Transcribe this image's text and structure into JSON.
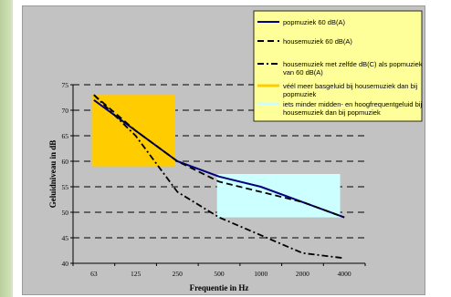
{
  "chart_data": {
    "type": "line",
    "xlabel": "Frequentie in Hz",
    "ylabel": "Geluidniveau in dB",
    "categories": [
      "63",
      "125",
      "250",
      "500",
      "1000",
      "2000",
      "4000"
    ],
    "yticks": [
      40,
      45,
      50,
      55,
      60,
      65,
      70,
      75
    ],
    "ylim": [
      40,
      75
    ],
    "grid": "horizontal-dashed",
    "legend_position": "top-right",
    "series": [
      {
        "name": "popmuziek 60 dB(A)",
        "style": "solid",
        "color": "#000080",
        "x": [
          "63",
          "125",
          "250",
          "500",
          "1000",
          "2000",
          "4000"
        ],
        "values": [
          72,
          66,
          60,
          57,
          55,
          52,
          49
        ]
      },
      {
        "name": "housemuziek 60 dB(A)",
        "style": "dashed",
        "color": "#000000",
        "x": [
          "63",
          "125",
          "250",
          "500",
          "1000",
          "2000",
          "4000"
        ],
        "values": [
          73,
          66,
          60,
          56,
          54,
          52,
          49
        ]
      },
      {
        "name": "housemuziek met zelfde dB(C) als popmuziek van 60 dB(A)",
        "style": "dashdot",
        "color": "#000000",
        "x": [
          "63",
          "125",
          "250",
          "500",
          "1000",
          "2000",
          "4000"
        ],
        "values": [
          73,
          65,
          54,
          49,
          45.5,
          42,
          41
        ]
      }
    ],
    "regions": [
      {
        "name": "véél meer basgeluid bij housemuziek dan bij popmuziek",
        "color": "#ffcc00",
        "x_range": [
          "63",
          "250"
        ],
        "y_range": [
          59,
          73
        ]
      },
      {
        "name": "iets minder midden- en hoogfrequentgeluid bij housemuziek dan bij popmuziek",
        "color": "#ccffff",
        "x_range": [
          "500",
          "4000"
        ],
        "y_range": [
          49,
          57.5
        ]
      }
    ],
    "legend": [
      {
        "label": "popmuziek 60 dB(A)",
        "swatch": "line-solid",
        "color": "#000080"
      },
      {
        "label": "housemuziek 60 dB(A)",
        "swatch": "line-dashed",
        "color": "#000000"
      },
      {
        "label": "housemuziek met zelfde dB(C) als popmuziek van 60 dB(A)",
        "swatch": "line-dashdot",
        "color": "#000000"
      },
      {
        "label": "véél meer basgeluid bij housemuziek dan bij popmuziek",
        "swatch": "fill",
        "color": "#ffcc00"
      },
      {
        "label": "iets minder midden- en hoogfrequentgeluid bij housemuziek dan bij popmuziek",
        "swatch": "fill",
        "color": "#ccffff"
      }
    ]
  },
  "colors": {
    "plot_background": "#c2c2c2",
    "legend_background": "#ffff99",
    "sidebar": "#c8dba8"
  }
}
